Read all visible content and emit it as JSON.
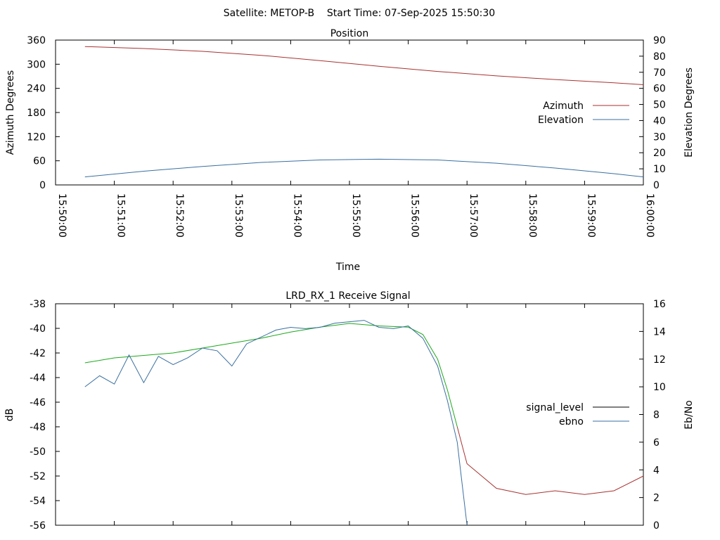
{
  "header": {
    "title": "Satellite: METOP-B    Start Time: 07-Sep-2025 15:50:30"
  },
  "colors": {
    "azimuth": "#a83232",
    "elevation": "#3a6fa0",
    "signal_level": "#000000",
    "ebno": "#3a6fa0",
    "signal_green": "#1ca81c",
    "signal_red": "#a83232"
  },
  "chart_data": [
    {
      "type": "line",
      "title": "Position",
      "xlabel": "Time",
      "ylabel": "Azimuth Degrees",
      "y2label": "Elevation Degrees",
      "x_ticks": [
        "15:50:00",
        "15:51:00",
        "15:52:00",
        "15:53:00",
        "15:54:00",
        "15:55:00",
        "15:56:00",
        "15:57:00",
        "15:58:00",
        "15:59:00",
        "16:00:00"
      ],
      "ylim": [
        0,
        360
      ],
      "y_ticks": [
        0,
        60,
        120,
        180,
        240,
        300,
        360
      ],
      "y2lim": [
        0,
        90
      ],
      "y2_ticks": [
        0,
        10,
        20,
        30,
        40,
        50,
        60,
        70,
        80,
        90
      ],
      "legend_position": "right",
      "series": [
        {
          "name": "Azimuth",
          "axis": "y",
          "x": [
            "15:50:30",
            "15:51:30",
            "15:52:30",
            "15:53:30",
            "15:54:30",
            "15:55:30",
            "15:56:30",
            "15:57:30",
            "15:58:30",
            "15:59:30",
            "16:00:00"
          ],
          "values": [
            344,
            339,
            332,
            322,
            309,
            295,
            282,
            271,
            262,
            254,
            249
          ]
        },
        {
          "name": "Elevation",
          "axis": "y2",
          "x": [
            "15:50:30",
            "15:51:30",
            "15:52:30",
            "15:53:30",
            "15:54:30",
            "15:55:30",
            "15:56:30",
            "15:57:30",
            "15:58:30",
            "15:59:30",
            "16:00:00"
          ],
          "values": [
            5,
            8.5,
            11.5,
            14,
            15.5,
            16,
            15.5,
            13.5,
            10.5,
            7,
            5
          ]
        }
      ]
    },
    {
      "type": "line",
      "title": "LRD_RX_1 Receive Signal",
      "xlabel": "",
      "ylabel": "dB",
      "y2label": "Eb/No",
      "ylim": [
        -56,
        -38
      ],
      "y_ticks": [
        -56,
        -54,
        -52,
        -50,
        -48,
        -46,
        -44,
        -42,
        -40,
        -38
      ],
      "y2lim": [
        0,
        16
      ],
      "y2_ticks": [
        0,
        2,
        4,
        6,
        8,
        10,
        12,
        14,
        16
      ],
      "legend_position": "right",
      "series": [
        {
          "name": "signal_level",
          "axis": "y",
          "x": [
            "15:50:30",
            "15:51:00",
            "15:51:30",
            "15:52:00",
            "15:52:30",
            "15:53:00",
            "15:53:30",
            "15:54:00",
            "15:54:30",
            "15:55:00",
            "15:55:30",
            "15:56:00",
            "15:56:15",
            "15:56:30",
            "15:56:40",
            "15:56:50",
            "15:56:55",
            "15:57:00",
            "15:57:30",
            "15:58:00",
            "15:58:30",
            "15:59:00",
            "15:59:30",
            "16:00:00"
          ],
          "values": [
            -42.8,
            -42.4,
            -42.2,
            -42,
            -41.6,
            -41.2,
            -40.8,
            -40.3,
            -39.9,
            -39.6,
            -39.8,
            -39.9,
            -40.5,
            -42.5,
            -45,
            -48,
            -49.5,
            -51,
            -53,
            -53.5,
            -53.2,
            -53.5,
            -53.2,
            -52
          ]
        },
        {
          "name": "ebno",
          "axis": "y2",
          "x": [
            "15:50:30",
            "15:50:45",
            "15:51:00",
            "15:51:15",
            "15:51:30",
            "15:51:45",
            "15:52:00",
            "15:52:15",
            "15:52:30",
            "15:52:45",
            "15:53:00",
            "15:53:15",
            "15:53:30",
            "15:53:45",
            "15:54:00",
            "15:54:15",
            "15:54:30",
            "15:54:45",
            "15:55:00",
            "15:55:15",
            "15:55:30",
            "15:55:45",
            "15:56:00",
            "15:56:15",
            "15:56:30",
            "15:56:40",
            "15:56:50",
            "15:56:55",
            "15:57:00"
          ],
          "values": [
            10,
            10.8,
            10.2,
            12.3,
            10.3,
            12.2,
            11.6,
            12.1,
            12.8,
            12.6,
            11.5,
            13.1,
            13.6,
            14.1,
            14.3,
            14.2,
            14.3,
            14.6,
            14.7,
            14.8,
            14.3,
            14.2,
            14.4,
            13.5,
            11.5,
            9,
            6,
            3,
            0
          ]
        }
      ]
    }
  ]
}
